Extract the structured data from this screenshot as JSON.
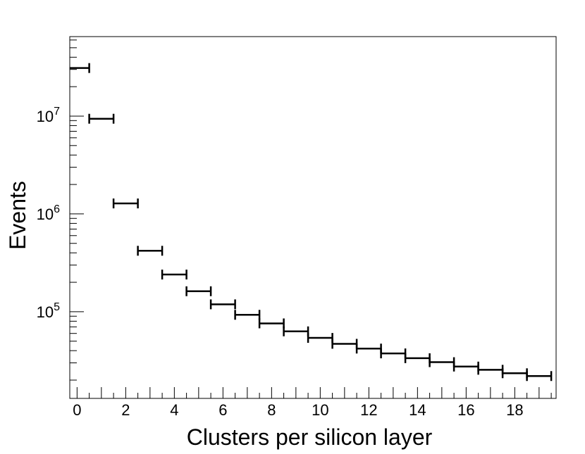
{
  "chart_data": {
    "type": "histogram",
    "title": "",
    "xlabel": "Clusters per silicon layer",
    "ylabel": "Events",
    "xlim": [
      -0.3,
      19.7
    ],
    "ylim": [
      13000,
      65000000
    ],
    "yscale": "log",
    "grid": false,
    "legend": "none",
    "x_ticks": [
      0,
      2,
      4,
      6,
      8,
      10,
      12,
      14,
      16,
      18
    ],
    "y_ticks": [
      {
        "value": 100000,
        "base": "10",
        "exp": "5"
      },
      {
        "value": 1000000,
        "base": "10",
        "exp": "6"
      },
      {
        "value": 10000000,
        "base": "10",
        "exp": "7"
      }
    ],
    "bin_width": 1,
    "series": [
      {
        "bin_centers": [
          0,
          1,
          2,
          3,
          4,
          5,
          6,
          7,
          8,
          9,
          10,
          11,
          12,
          13,
          14,
          15,
          16,
          17,
          18,
          19
        ],
        "values": [
          31000000,
          9400000,
          1280000,
          420000,
          240000,
          162000,
          119000,
          93000,
          76000,
          63000,
          54000,
          47000,
          42000,
          37500,
          33500,
          30500,
          27500,
          25500,
          23500,
          22000
        ]
      }
    ],
    "color": "#000000"
  }
}
